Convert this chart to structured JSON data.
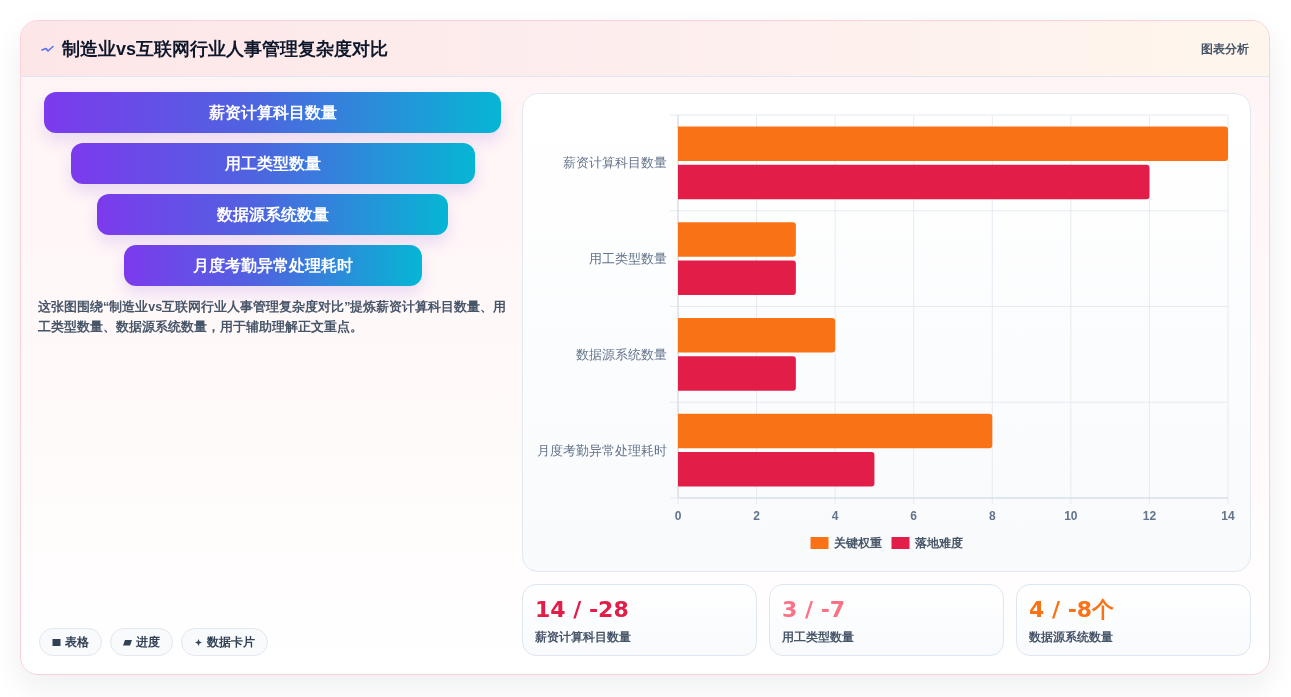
{
  "chart_data": [
    {
      "type": "other",
      "title": "制造业vs互联网行业人事管理复杂度对比",
      "categories": [
        "薪资计算科目数量",
        "用工类型数量",
        "数据源系统数量",
        "月度考勤异常处理耗时"
      ],
      "annotations": [
        "这张图围绕“制造业vs互联网行业人事管理复杂度对比”提炼薪资计算科目数量、用工类型数量、数据源系统数量，用于辅助理解正文重点。"
      ]
    },
    {
      "type": "bar",
      "annotations": [
        "图表分析"
      ],
      "orientation": "horizontal",
      "categories": [
        "薪资计算科目数量",
        "用工类型数量",
        "数据源系统数量",
        "月度考勤异常处理耗时"
      ],
      "series": [
        {
          "name": "关键权重",
          "color": "#f97316",
          "values": [
            14,
            3,
            4,
            8
          ]
        },
        {
          "name": "落地难度",
          "color": "#e11d48",
          "values": [
            12,
            3,
            3,
            5
          ]
        }
      ],
      "xlim": [
        0,
        14
      ],
      "xticks": [
        0,
        2,
        4,
        6,
        8,
        10,
        12,
        14
      ],
      "grid": true,
      "legend": "bottom"
    },
    {
      "type": "other",
      "categories": [
        "薪资计算科目数量",
        "用工类型数量",
        "数据源系统数量"
      ],
      "annotations": [
        "14 / -28",
        "3 / -7",
        "4 / -8个"
      ]
    },
    {
      "type": "other",
      "annotations": [
        "表格",
        "进度",
        "数据卡片"
      ]
    }
  ]
}
